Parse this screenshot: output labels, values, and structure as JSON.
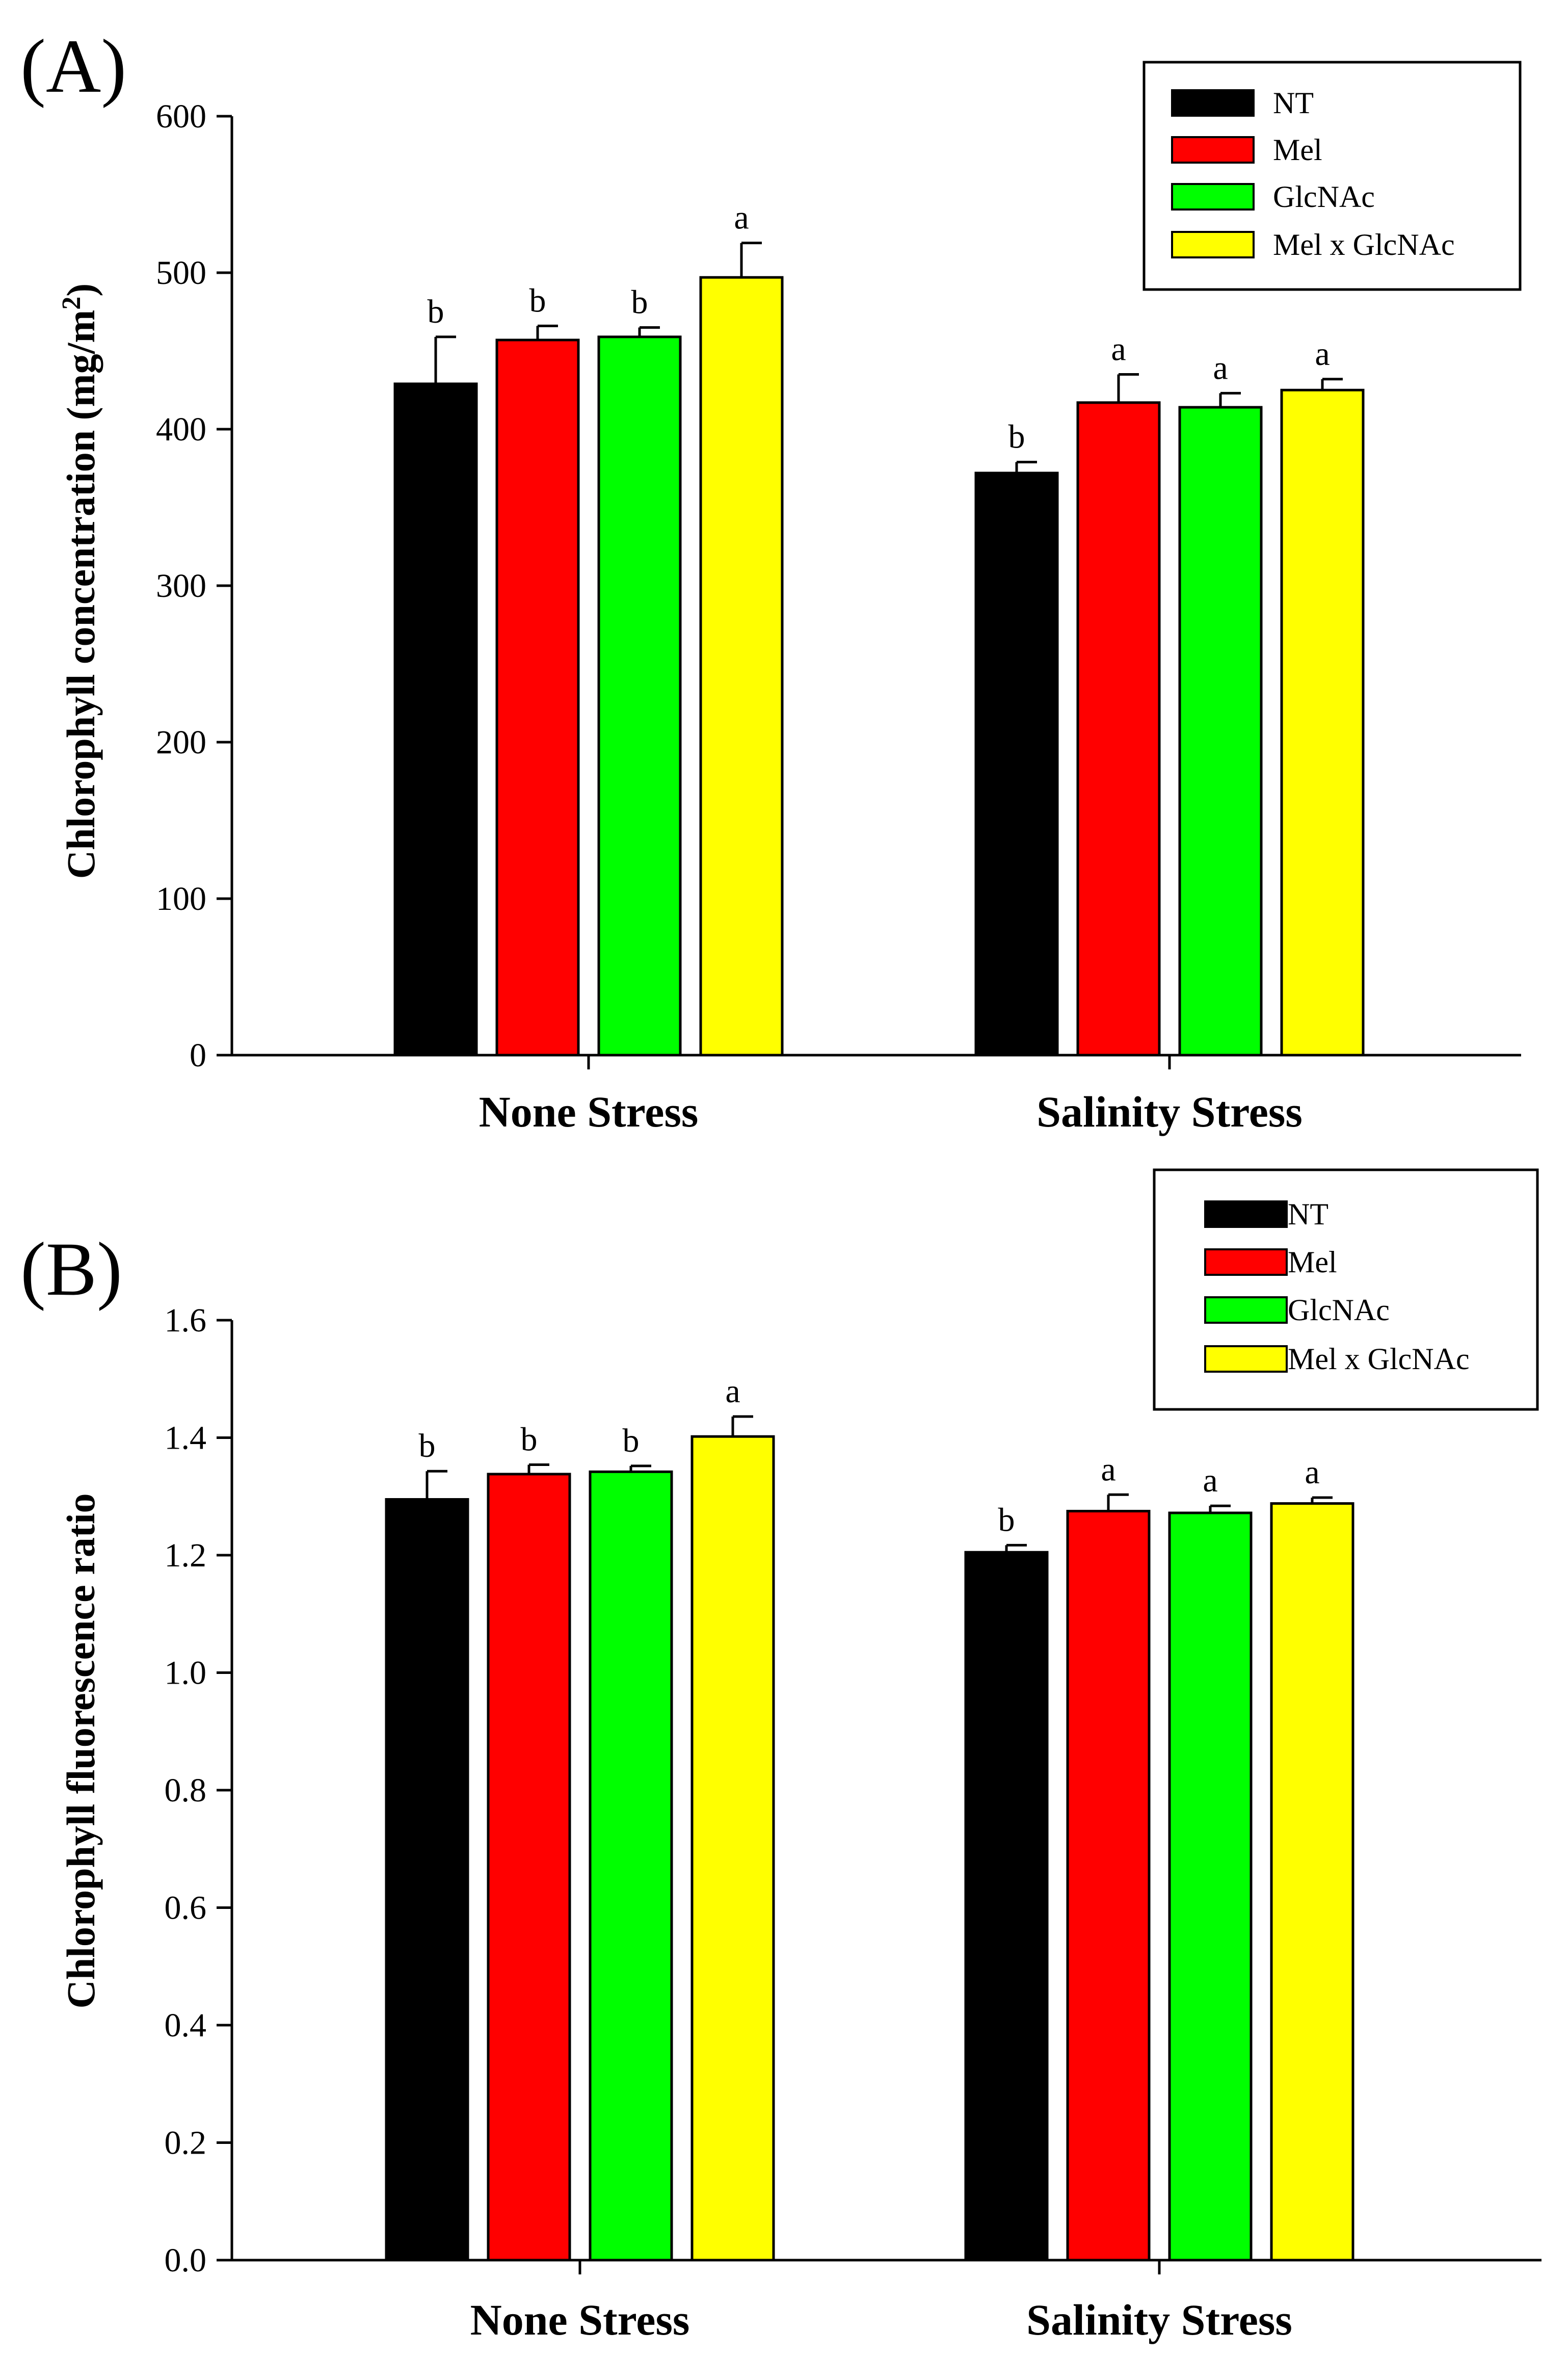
{
  "chart_data": [
    {
      "panel_label": "(A)",
      "type": "bar",
      "title": "",
      "xlabel": "",
      "ylabel": "Chlorophyll concentration (mg/m",
      "ylabel_sup": "2",
      "ylabel_close": ")",
      "ylim": [
        0,
        600
      ],
      "yticks": [
        "0",
        "100",
        "200",
        "300",
        "400",
        "500",
        "600"
      ],
      "categories": [
        "None Stress",
        "Salinity Stress"
      ],
      "series": [
        {
          "name": "NT",
          "color": "#000000",
          "values": [
            429,
            372
          ],
          "errors": [
            30,
            7
          ],
          "letters": [
            "b",
            "b"
          ]
        },
        {
          "name": "Mel",
          "color": "#ff0000",
          "values": [
            457,
            417
          ],
          "errors": [
            9,
            18
          ],
          "letters": [
            "b",
            "a"
          ]
        },
        {
          "name": "GlcNAc",
          "color": "#00ff00",
          "values": [
            459,
            414
          ],
          "errors": [
            6,
            9
          ],
          "letters": [
            "b",
            "a"
          ]
        },
        {
          "name": "Mel x GlcNAc",
          "color": "#ffff00",
          "values": [
            497,
            425
          ],
          "errors": [
            22,
            7
          ],
          "letters": [
            "a",
            "a"
          ]
        }
      ],
      "legend_position": "top-right"
    },
    {
      "panel_label": "(B)",
      "type": "bar",
      "title": "",
      "xlabel": "",
      "ylabel": "Chlorophyll fluorescence ratio",
      "ylabel_sup": "",
      "ylabel_close": "",
      "ylim": [
        0,
        1.6
      ],
      "yticks": [
        "0.0",
        "0.2",
        "0.4",
        "0.6",
        "0.8",
        "1.0",
        "1.2",
        "1.4",
        "1.6"
      ],
      "categories": [
        "None Stress",
        "Salinity Stress"
      ],
      "series": [
        {
          "name": "NT",
          "color": "#000000",
          "values": [
            1.295,
            1.205
          ],
          "errors": [
            0.048,
            0.012
          ],
          "letters": [
            "b",
            "b"
          ]
        },
        {
          "name": "Mel",
          "color": "#ff0000",
          "values": [
            1.338,
            1.275
          ],
          "errors": [
            0.016,
            0.028
          ],
          "letters": [
            "b",
            "a"
          ]
        },
        {
          "name": "GlcNAc",
          "color": "#00ff00",
          "values": [
            1.342,
            1.272
          ],
          "errors": [
            0.01,
            0.012
          ],
          "letters": [
            "b",
            "a"
          ]
        },
        {
          "name": "Mel x GlcNAc",
          "color": "#ffff00",
          "values": [
            1.402,
            1.288
          ],
          "errors": [
            0.034,
            0.01
          ],
          "letters": [
            "a",
            "a"
          ]
        }
      ],
      "legend_position": "top-right"
    }
  ]
}
